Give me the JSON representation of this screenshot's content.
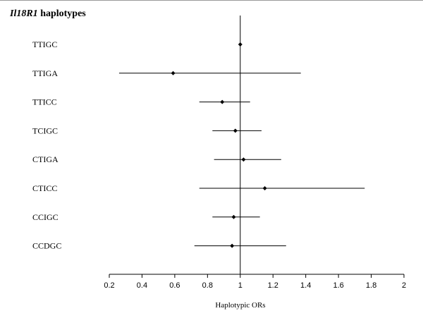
{
  "chart_data": {
    "type": "forest",
    "title_italic": "Il18R1",
    "title_rest": " haplotypes",
    "xlabel": "Haplotypic ORs",
    "xlim": [
      0.2,
      2
    ],
    "xticks": [
      0.2,
      0.4,
      0.6,
      0.8,
      1,
      1.2,
      1.4,
      1.6,
      1.8,
      2
    ],
    "reference_line": 1,
    "grid": false,
    "rows": [
      {
        "label": "TTIGC",
        "or": 1.0,
        "lower": 1.0,
        "upper": 1.0
      },
      {
        "label": "TTIGA",
        "or": 0.59,
        "lower": 0.26,
        "upper": 1.37
      },
      {
        "label": "TTICC",
        "or": 0.89,
        "lower": 0.75,
        "upper": 1.06
      },
      {
        "label": "TCIGC",
        "or": 0.97,
        "lower": 0.83,
        "upper": 1.13
      },
      {
        "label": "CTIGA",
        "or": 1.02,
        "lower": 0.84,
        "upper": 1.25
      },
      {
        "label": "CTICC",
        "or": 1.15,
        "lower": 0.75,
        "upper": 1.76
      },
      {
        "label": "CCIGC",
        "or": 0.96,
        "lower": 0.83,
        "upper": 1.12
      },
      {
        "label": "CCDGC",
        "or": 0.95,
        "lower": 0.72,
        "upper": 1.28
      }
    ]
  }
}
